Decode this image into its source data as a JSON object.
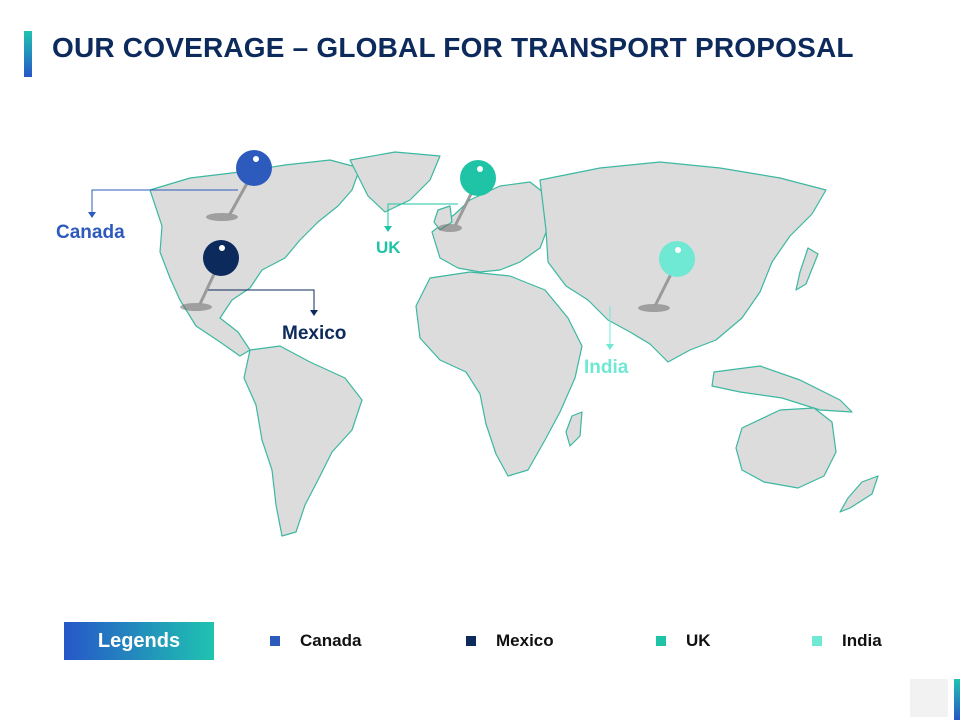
{
  "header": {
    "title": "OUR COVERAGE – GLOBAL FOR TRANSPORT PROPOSAL"
  },
  "map": {
    "markers": [
      {
        "name": "Canada",
        "color": "#2d5bbd"
      },
      {
        "name": "Mexico",
        "color": "#0d2a5c"
      },
      {
        "name": "UK",
        "color": "#1fc3a5"
      },
      {
        "name": "India",
        "color": "#6fe8d4"
      }
    ]
  },
  "legend": {
    "title": "Legends",
    "items": [
      {
        "label": "Canada",
        "color": "#2d5bbd"
      },
      {
        "label": "Mexico",
        "color": "#0d2a5c"
      },
      {
        "label": "UK",
        "color": "#1fc3a5"
      },
      {
        "label": "India",
        "color": "#6fe8d4"
      }
    ]
  }
}
